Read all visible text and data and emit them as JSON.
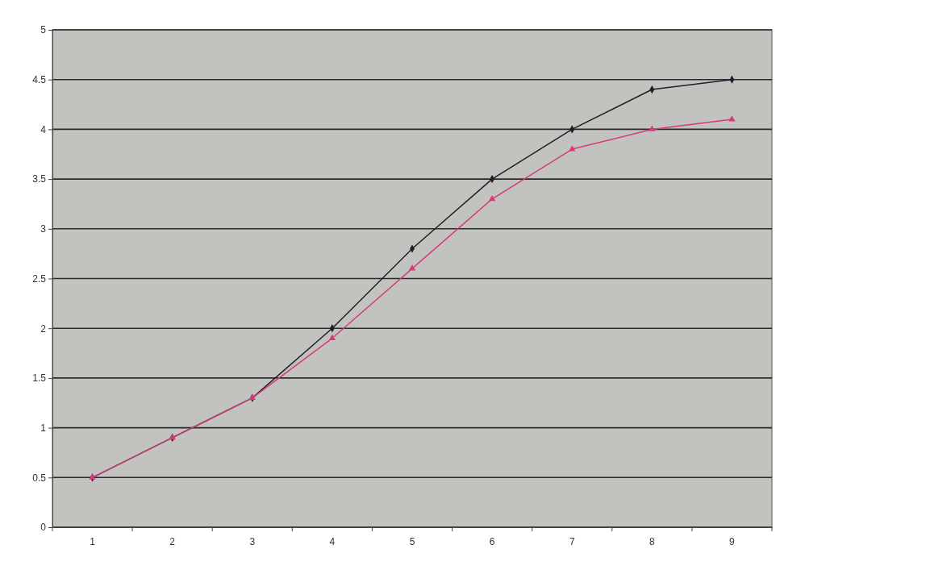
{
  "chart_data": {
    "type": "line",
    "categories": [
      "1",
      "2",
      "3",
      "4",
      "5",
      "6",
      "7",
      "8",
      "9"
    ],
    "series": [
      {
        "color": "#1e1e28",
        "marker": "diamond",
        "values": [
          0.5,
          0.9,
          1.3,
          2.0,
          2.8,
          3.5,
          4.0,
          4.4,
          4.5
        ]
      },
      {
        "color": "#d63a7c",
        "marker": "triangle",
        "values": [
          0.5,
          0.9,
          1.3,
          1.9,
          2.6,
          3.3,
          3.8,
          4.0,
          4.1
        ]
      }
    ],
    "ylim": [
      0,
      5
    ],
    "yticks": [
      0,
      0.5,
      1,
      1.5,
      2,
      2.5,
      3,
      3.5,
      4,
      4.5,
      5
    ],
    "grid": "y"
  }
}
